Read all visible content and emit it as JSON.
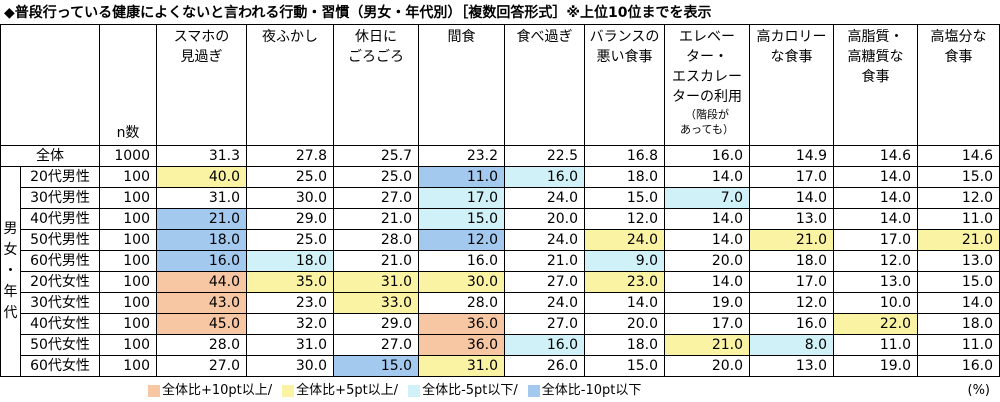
{
  "title": "◆普段行っている健康によくないと言われる行動・習慣（男女・年代別）［複数回答形式］※上位10位までを表示",
  "n_label": "n数",
  "group_label": [
    "男",
    "女",
    "・",
    "年",
    "代"
  ],
  "columns": [
    {
      "lines": [
        "スマホの",
        "見過ぎ"
      ],
      "sub": []
    },
    {
      "lines": [
        "夜ふかし"
      ],
      "sub": []
    },
    {
      "lines": [
        "休日に",
        "ごろごろ"
      ],
      "sub": []
    },
    {
      "lines": [
        "間食"
      ],
      "sub": []
    },
    {
      "lines": [
        "食べ過ぎ"
      ],
      "sub": []
    },
    {
      "lines": [
        "バランスの",
        "悪い食事"
      ],
      "sub": []
    },
    {
      "lines": [
        "エレベー",
        "ター・",
        "エスカレー",
        "ターの利用"
      ],
      "sub": [
        "（階段が",
        "あっても）"
      ]
    },
    {
      "lines": [
        "高カロリー",
        "な食事"
      ],
      "sub": []
    },
    {
      "lines": [
        "高脂質・",
        "高糖質な",
        "食事"
      ],
      "sub": []
    },
    {
      "lines": [
        "高塩分な",
        "食事"
      ],
      "sub": []
    }
  ],
  "total": {
    "label": "全体",
    "n": "1000",
    "values": [
      "31.3",
      "27.8",
      "25.7",
      "23.2",
      "22.5",
      "16.8",
      "16.0",
      "14.9",
      "14.6",
      "14.6"
    ]
  },
  "rows": [
    {
      "label": "20代男性",
      "n": "100",
      "values": [
        "40.0",
        "25.0",
        "25.0",
        "11.0",
        "16.0",
        "18.0",
        "14.0",
        "17.0",
        "14.0",
        "15.0"
      ],
      "hl": [
        "y",
        "",
        "",
        "b",
        "c",
        "",
        "",
        "",
        "",
        ""
      ]
    },
    {
      "label": "30代男性",
      "n": "100",
      "values": [
        "31.0",
        "30.0",
        "27.0",
        "17.0",
        "24.0",
        "15.0",
        "7.0",
        "14.0",
        "14.0",
        "12.0"
      ],
      "hl": [
        "",
        "",
        "",
        "c",
        "",
        "",
        "c",
        "",
        "",
        ""
      ]
    },
    {
      "label": "40代男性",
      "n": "100",
      "values": [
        "21.0",
        "29.0",
        "21.0",
        "15.0",
        "20.0",
        "12.0",
        "14.0",
        "13.0",
        "14.0",
        "11.0"
      ],
      "hl": [
        "b",
        "",
        "",
        "c",
        "",
        "",
        "",
        "",
        "",
        ""
      ]
    },
    {
      "label": "50代男性",
      "n": "100",
      "values": [
        "18.0",
        "25.0",
        "28.0",
        "12.0",
        "24.0",
        "24.0",
        "14.0",
        "21.0",
        "17.0",
        "21.0"
      ],
      "hl": [
        "b",
        "",
        "",
        "b",
        "",
        "y",
        "",
        "y",
        "",
        "y"
      ]
    },
    {
      "label": "60代男性",
      "n": "100",
      "values": [
        "16.0",
        "18.0",
        "21.0",
        "16.0",
        "21.0",
        "9.0",
        "20.0",
        "18.0",
        "12.0",
        "13.0"
      ],
      "hl": [
        "b",
        "c",
        "",
        "",
        "",
        "c",
        "",
        "",
        "",
        ""
      ]
    },
    {
      "label": "20代女性",
      "n": "100",
      "values": [
        "44.0",
        "35.0",
        "31.0",
        "30.0",
        "27.0",
        "23.0",
        "14.0",
        "17.0",
        "13.0",
        "15.0"
      ],
      "hl": [
        "o",
        "y",
        "y",
        "y",
        "",
        "y",
        "",
        "",
        "",
        ""
      ]
    },
    {
      "label": "30代女性",
      "n": "100",
      "values": [
        "43.0",
        "23.0",
        "33.0",
        "28.0",
        "24.0",
        "14.0",
        "19.0",
        "12.0",
        "10.0",
        "14.0"
      ],
      "hl": [
        "o",
        "",
        "y",
        "",
        "",
        "",
        "",
        "",
        "",
        ""
      ]
    },
    {
      "label": "40代女性",
      "n": "100",
      "values": [
        "45.0",
        "32.0",
        "29.0",
        "36.0",
        "27.0",
        "20.0",
        "17.0",
        "16.0",
        "22.0",
        "18.0"
      ],
      "hl": [
        "o",
        "",
        "",
        "o",
        "",
        "",
        "",
        "",
        "y",
        ""
      ]
    },
    {
      "label": "50代女性",
      "n": "100",
      "values": [
        "28.0",
        "31.0",
        "27.0",
        "36.0",
        "16.0",
        "18.0",
        "21.0",
        "8.0",
        "11.0",
        "11.0"
      ],
      "hl": [
        "",
        "",
        "",
        "o",
        "c",
        "",
        "y",
        "c",
        "",
        ""
      ]
    },
    {
      "label": "60代女性",
      "n": "100",
      "values": [
        "27.0",
        "30.0",
        "15.0",
        "31.0",
        "26.0",
        "15.0",
        "20.0",
        "13.0",
        "19.0",
        "16.0"
      ],
      "hl": [
        "",
        "",
        "b",
        "y",
        "",
        "",
        "",
        "",
        "",
        ""
      ]
    }
  ],
  "legend": [
    {
      "text": "全体比+10pt以上/",
      "color": "#f7c7a4"
    },
    {
      "text": "全体比+5pt以上/",
      "color": "#fbf3a4"
    },
    {
      "text": "全体比-5pt以下/",
      "color": "#d0f1f7"
    },
    {
      "text": "全体比-10pt以下",
      "color": "#a3c9ef"
    }
  ],
  "unit": "(%)"
}
